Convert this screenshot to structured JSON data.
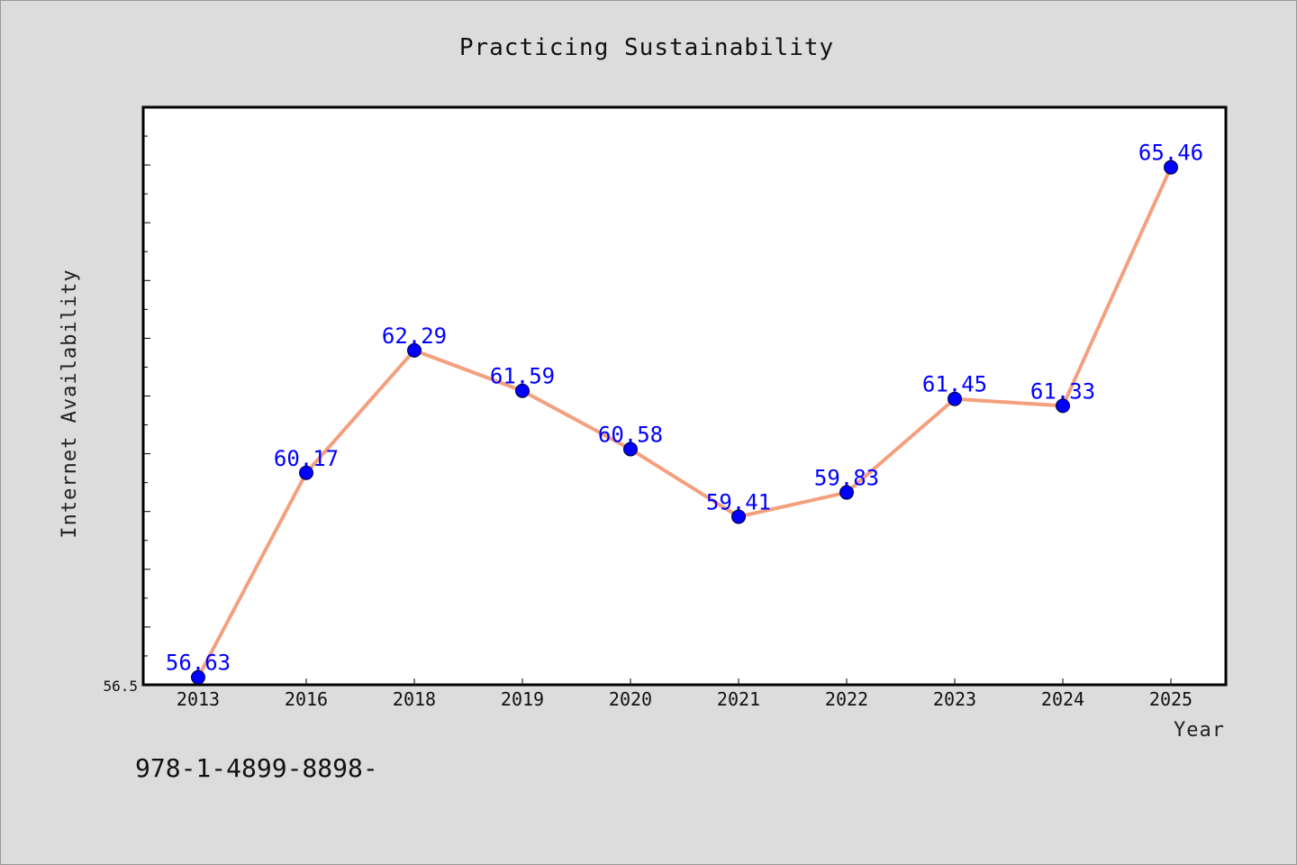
{
  "chart_data": {
    "type": "line",
    "title": "Practicing Sustainability",
    "xlabel": "Year",
    "ylabel": "Internet Availability",
    "categories": [
      "2013",
      "2016",
      "2018",
      "2019",
      "2020",
      "2021",
      "2022",
      "2023",
      "2024",
      "2025"
    ],
    "series": [
      {
        "values": [
          56.63,
          60.17,
          62.29,
          61.59,
          60.58,
          59.41,
          59.83,
          61.45,
          61.33,
          65.46
        ],
        "data_labels": [
          "56.63",
          "60.17",
          "62.29",
          "61.59",
          "60.58",
          "59.41",
          "59.83",
          "61.45",
          "61.33",
          "65.46"
        ]
      }
    ],
    "ylim": [
      56.5,
      66.5
    ],
    "y_tick_labels": [
      "56.5"
    ],
    "grid": false,
    "line_color": "#f4a07e",
    "marker_color": "#0000ff",
    "label_color": "#0000ff"
  },
  "footer_text": "978-1-4899-8898-",
  "colors": {
    "background": "#dcdcdc",
    "plot_background": "#ffffff"
  }
}
